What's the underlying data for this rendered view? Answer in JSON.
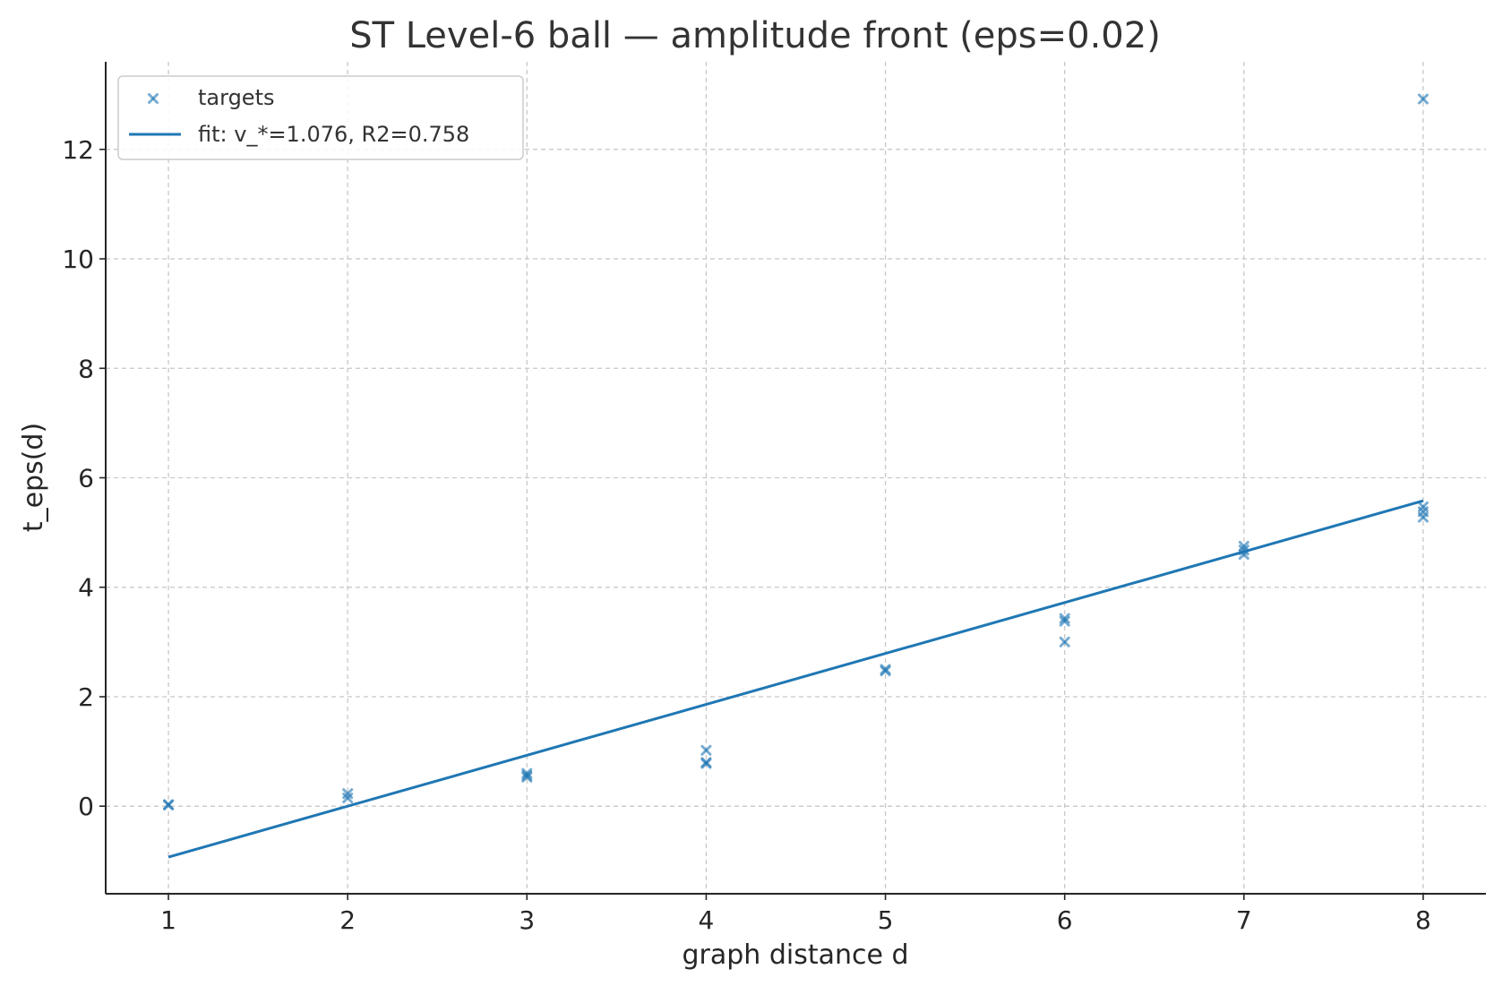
{
  "chart_data": {
    "type": "scatter",
    "title": "ST Level-6 ball — amplitude front (eps=0.02)",
    "xlabel": "graph distance d",
    "ylabel": "t_eps(d)",
    "xlim": [
      0.65,
      8.35
    ],
    "ylim": [
      -1.6,
      13.6
    ],
    "xticks": [
      1,
      2,
      3,
      4,
      5,
      6,
      7,
      8
    ],
    "yticks": [
      0,
      2,
      4,
      6,
      8,
      10,
      12
    ],
    "grid": true,
    "legend_position": "top-left",
    "colors": {
      "points": "#1f77b4",
      "fit": "#1f77b4"
    },
    "series": [
      {
        "name": "targets",
        "kind": "scatter",
        "marker": "x",
        "points": [
          {
            "x": 1,
            "y": 0.03
          },
          {
            "x": 1,
            "y": 0.02
          },
          {
            "x": 2,
            "y": 0.23
          },
          {
            "x": 2,
            "y": 0.15
          },
          {
            "x": 3,
            "y": 0.6
          },
          {
            "x": 3,
            "y": 0.53
          },
          {
            "x": 3,
            "y": 0.56
          },
          {
            "x": 4,
            "y": 1.02
          },
          {
            "x": 4,
            "y": 0.8
          },
          {
            "x": 4,
            "y": 0.78
          },
          {
            "x": 5,
            "y": 2.5
          },
          {
            "x": 5,
            "y": 2.47
          },
          {
            "x": 6,
            "y": 3.43
          },
          {
            "x": 6,
            "y": 3.38
          },
          {
            "x": 6,
            "y": 3.0
          },
          {
            "x": 7,
            "y": 4.75
          },
          {
            "x": 7,
            "y": 4.68
          },
          {
            "x": 7,
            "y": 4.6
          },
          {
            "x": 8,
            "y": 12.92
          },
          {
            "x": 8,
            "y": 5.47
          },
          {
            "x": 8,
            "y": 5.38
          },
          {
            "x": 8,
            "y": 5.28
          }
        ]
      },
      {
        "name": "fit: v_*=1.076, R2=0.758",
        "kind": "line",
        "points": [
          {
            "x": 1,
            "y": -0.93
          },
          {
            "x": 8,
            "y": 5.58
          }
        ]
      }
    ]
  }
}
